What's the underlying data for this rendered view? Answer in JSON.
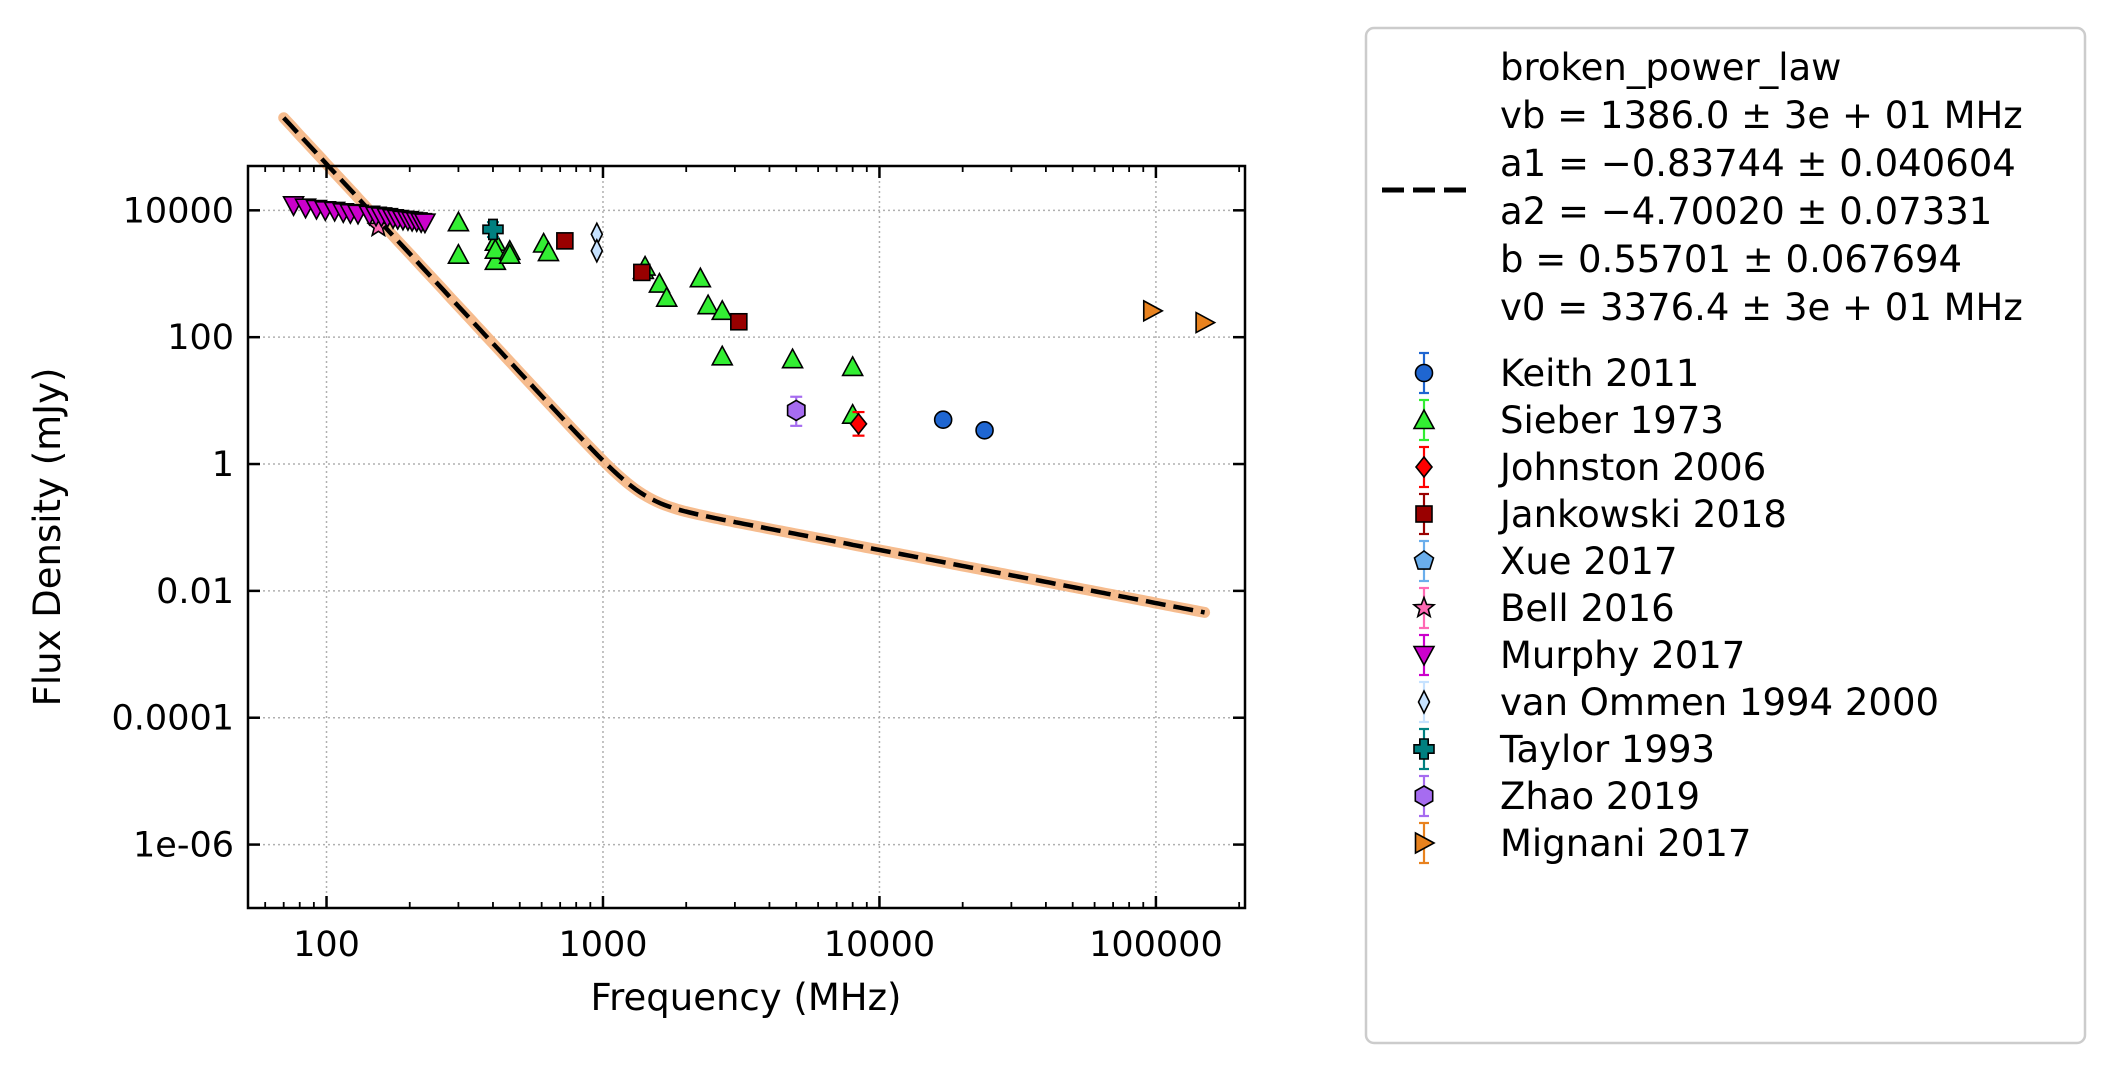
{
  "chart_data": {
    "type": "scatter",
    "xlabel": "Frequency (MHz)",
    "ylabel": "Flux Density (mJy)",
    "x_scale": "log",
    "y_scale": "log",
    "xlim": [
      52,
      210000
    ],
    "ylim": [
      1e-07,
      50000
    ],
    "x_ticks": [
      {
        "value": 100,
        "label": "100"
      },
      {
        "value": 1000,
        "label": "1000"
      },
      {
        "value": 10000,
        "label": "10000"
      },
      {
        "value": 100000,
        "label": "100000"
      }
    ],
    "y_ticks": [
      {
        "value": 10000,
        "label": "10000"
      },
      {
        "value": 100,
        "label": "100"
      },
      {
        "value": 1,
        "label": "1"
      },
      {
        "value": 0.01,
        "label": "0.01"
      },
      {
        "value": 0.0001,
        "label": "0.0001"
      },
      {
        "value": 1e-06,
        "label": "1e-06"
      }
    ],
    "grid": true,
    "legend_position": "right, outside plot",
    "fit": {
      "name": "broken_power_law",
      "params": [
        "vb = 1386.0 ± 3e + 01 MHz",
        "a1 = −0.83744 ± 0.040604",
        "a2 = −4.70020 ± 0.07331",
        "b = 0.55701 ± 0.067694",
        "v0 = 3376.4 ± 3e + 01 MHz"
      ],
      "vb": 1386.0,
      "a1": -0.83744,
      "a2": -4.7002,
      "b": 0.55701,
      "v0": 3376.4,
      "x_range": [
        70,
        150000
      ],
      "color": "#000000",
      "band_color": "#f4b07a"
    },
    "series": [
      {
        "name": "Keith 2011",
        "marker": "circle",
        "color": "#1f66d1",
        "ecolor": "#1f66d1",
        "points": [
          {
            "x": 17000,
            "y": 5.0
          },
          {
            "x": 24000,
            "y": 3.4
          }
        ]
      },
      {
        "name": "Sieber 1973",
        "marker": "triangle-up",
        "color": "#33ee33",
        "ecolor": "#33ee33",
        "points": [
          {
            "x": 300,
            "y": 6500
          },
          {
            "x": 300,
            "y": 2000
          },
          {
            "x": 408,
            "y": 3200
          },
          {
            "x": 408,
            "y": 1600
          },
          {
            "x": 408,
            "y": 2400
          },
          {
            "x": 460,
            "y": 2300
          },
          {
            "x": 460,
            "y": 2000
          },
          {
            "x": 610,
            "y": 3000
          },
          {
            "x": 635,
            "y": 2200
          },
          {
            "x": 1400,
            "y": 1150
          },
          {
            "x": 1420,
            "y": 1300
          },
          {
            "x": 1600,
            "y": 700
          },
          {
            "x": 1700,
            "y": 420
          },
          {
            "x": 2250,
            "y": 850
          },
          {
            "x": 2400,
            "y": 320
          },
          {
            "x": 2700,
            "y": 260
          },
          {
            "x": 2700,
            "y": 50
          },
          {
            "x": 4850,
            "y": 45
          },
          {
            "x": 8000,
            "y": 34
          },
          {
            "x": 8000,
            "y": 6.0
          }
        ]
      },
      {
        "name": "Johnston 2006",
        "marker": "diamond",
        "color": "#ff0000",
        "ecolor": "#ff0000",
        "points": [
          {
            "x": 8400,
            "y": 4.3,
            "err": [
              2.3,
              1.5
            ]
          }
        ]
      },
      {
        "name": "Jankowski 2018",
        "marker": "square",
        "color": "#990000",
        "ecolor": "#990000",
        "points": [
          {
            "x": 728,
            "y": 3300
          },
          {
            "x": 1382,
            "y": 1050
          },
          {
            "x": 3100,
            "y": 175
          }
        ]
      },
      {
        "name": "Xue 2017",
        "marker": "pentagon",
        "color": "#6aaeec",
        "ecolor": "#6aaeec",
        "points": []
      },
      {
        "name": "Bell 2016",
        "marker": "star",
        "color": "#ff69b4",
        "ecolor": "#ff69b4",
        "points": [
          {
            "x": 154,
            "y": 5500
          }
        ]
      },
      {
        "name": "Murphy 2017",
        "marker": "triangle-down",
        "color": "#cc00cc",
        "ecolor": "#cc00cc",
        "points": [
          {
            "x": 76,
            "y": 12000
          },
          {
            "x": 84,
            "y": 11000
          },
          {
            "x": 92,
            "y": 10500
          },
          {
            "x": 99,
            "y": 10000
          },
          {
            "x": 107,
            "y": 9800
          },
          {
            "x": 115,
            "y": 9300
          },
          {
            "x": 122,
            "y": 9000
          },
          {
            "x": 130,
            "y": 8800
          },
          {
            "x": 143,
            "y": 8500
          },
          {
            "x": 151,
            "y": 8200
          },
          {
            "x": 158,
            "y": 8000
          },
          {
            "x": 166,
            "y": 7800
          },
          {
            "x": 174,
            "y": 7500
          },
          {
            "x": 181,
            "y": 7300
          },
          {
            "x": 189,
            "y": 7100
          },
          {
            "x": 197,
            "y": 7000
          },
          {
            "x": 204,
            "y": 6800
          },
          {
            "x": 212,
            "y": 6700
          },
          {
            "x": 220,
            "y": 6500
          },
          {
            "x": 227,
            "y": 6400
          }
        ]
      },
      {
        "name": "van Ommen 1994 2000",
        "marker": "thin-diamond",
        "color": "#c6e2ff",
        "ecolor": "#c6e2ff",
        "points": [
          {
            "x": 950,
            "y": 4200
          },
          {
            "x": 950,
            "y": 2300
          }
        ]
      },
      {
        "name": "Taylor 1993",
        "marker": "plus",
        "color": "#008080",
        "ecolor": "#008080",
        "points": [
          {
            "x": 400,
            "y": 5000,
            "err": [
              1500,
              1200
            ]
          }
        ]
      },
      {
        "name": "Zhao 2019",
        "marker": "hexagon",
        "color": "#a66cf0",
        "ecolor": "#a66cf0",
        "points": [
          {
            "x": 5000,
            "y": 7.0,
            "err": [
              4.5,
              3.0
            ]
          }
        ]
      },
      {
        "name": "Mignani 2017",
        "marker": "triangle-right",
        "color": "#e8821e",
        "ecolor": "#e8821e",
        "points": [
          {
            "x": 97000,
            "y": 260
          },
          {
            "x": 150000,
            "y": 170
          }
        ]
      }
    ]
  }
}
